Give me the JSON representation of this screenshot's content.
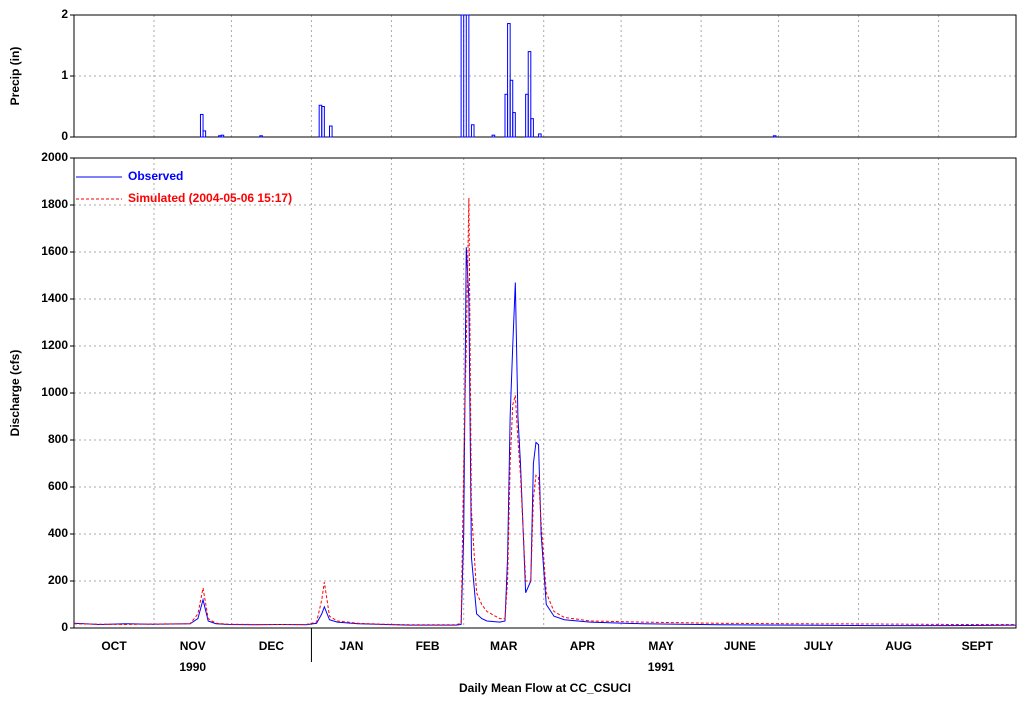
{
  "chart_data": [
    {
      "type": "bar",
      "ylabel": "Precip (in)",
      "color": "#0000ff",
      "xlim": [
        0,
        365
      ],
      "xgrid": [
        31,
        61,
        92,
        123,
        151,
        182,
        212,
        243,
        273,
        304,
        335
      ],
      "ylim": [
        0,
        2
      ],
      "yticks": [
        0,
        1,
        2
      ],
      "grid": true,
      "x": [
        49,
        50,
        56,
        57,
        72,
        95,
        96,
        99,
        150,
        152,
        154,
        162,
        167,
        168,
        169,
        170,
        175,
        176,
        177,
        180,
        271
      ],
      "values": [
        0.37,
        0.1,
        0.02,
        0.03,
        0.02,
        0.52,
        0.5,
        0.18,
        2,
        2,
        0.2,
        0.03,
        0.7,
        1.86,
        0.93,
        0.4,
        0.7,
        1.4,
        0.3,
        0.05,
        0.02
      ]
    },
    {
      "type": "line",
      "ylabel": "Discharge (cfs)",
      "xlabel": "Daily Mean Flow at CC_CSUCI",
      "xlim": [
        0,
        365
      ],
      "xgrid": [
        31,
        61,
        92,
        123,
        151,
        182,
        212,
        243,
        273,
        304,
        335
      ],
      "xticks": [
        {
          "value": 15.5,
          "label": "OCT"
        },
        {
          "value": 46,
          "label": "NOV"
        },
        {
          "value": 76.5,
          "label": "DEC"
        },
        {
          "value": 107.5,
          "label": "JAN"
        },
        {
          "value": 137,
          "label": "FEB"
        },
        {
          "value": 166.5,
          "label": "MAR"
        },
        {
          "value": 197,
          "label": "APR"
        },
        {
          "value": 227.5,
          "label": "MAY"
        },
        {
          "value": 258,
          "label": "JUNE"
        },
        {
          "value": 288.5,
          "label": "JULY"
        },
        {
          "value": 319.5,
          "label": "AUG"
        },
        {
          "value": 350,
          "label": "SEPT"
        }
      ],
      "year_labels": [
        {
          "value": 46,
          "label": "1990"
        },
        {
          "value": 227.5,
          "label": "1991"
        }
      ],
      "year_divider": 92,
      "ylim": [
        0,
        2000
      ],
      "yticks": [
        0,
        200,
        400,
        600,
        800,
        1000,
        1200,
        1400,
        1600,
        1800,
        2000
      ],
      "grid": true,
      "legend": "upper-left",
      "x": [
        0,
        10,
        20,
        30,
        45,
        48,
        50,
        52,
        55,
        60,
        70,
        80,
        90,
        94,
        96,
        97,
        99,
        102,
        110,
        120,
        130,
        140,
        148,
        150,
        151,
        152,
        153,
        154,
        156,
        158,
        160,
        165,
        167,
        168,
        169,
        170,
        171,
        172,
        173,
        175,
        177,
        178,
        179,
        180,
        181,
        183,
        186,
        190,
        200,
        220,
        250,
        280,
        310,
        340,
        365
      ],
      "series": [
        {
          "name": "Observed",
          "color": "#0000ff",
          "dash": false,
          "values": [
            20,
            15,
            18,
            16,
            18,
            40,
            120,
            30,
            18,
            15,
            14,
            15,
            14,
            20,
            60,
            90,
            35,
            25,
            18,
            15,
            12,
            12,
            12,
            15,
            400,
            1620,
            1400,
            300,
            60,
            40,
            30,
            25,
            30,
            300,
            900,
            1200,
            1470,
            900,
            700,
            150,
            200,
            700,
            790,
            780,
            400,
            100,
            50,
            35,
            25,
            18,
            14,
            12,
            10,
            10,
            12
          ]
        },
        {
          "name": "Simulated (2004-05-06 15:17)",
          "color": "#ff0000",
          "dash": true,
          "values": [
            18,
            16,
            15,
            17,
            18,
            60,
            170,
            40,
            20,
            16,
            15,
            15,
            15,
            25,
            120,
            195,
            50,
            30,
            20,
            16,
            14,
            14,
            14,
            20,
            700,
            1200,
            1830,
            500,
            150,
            100,
            70,
            40,
            40,
            200,
            700,
            950,
            990,
            800,
            650,
            200,
            200,
            550,
            650,
            640,
            450,
            150,
            70,
            45,
            30,
            25,
            20,
            18,
            17,
            15,
            15
          ]
        }
      ]
    }
  ]
}
